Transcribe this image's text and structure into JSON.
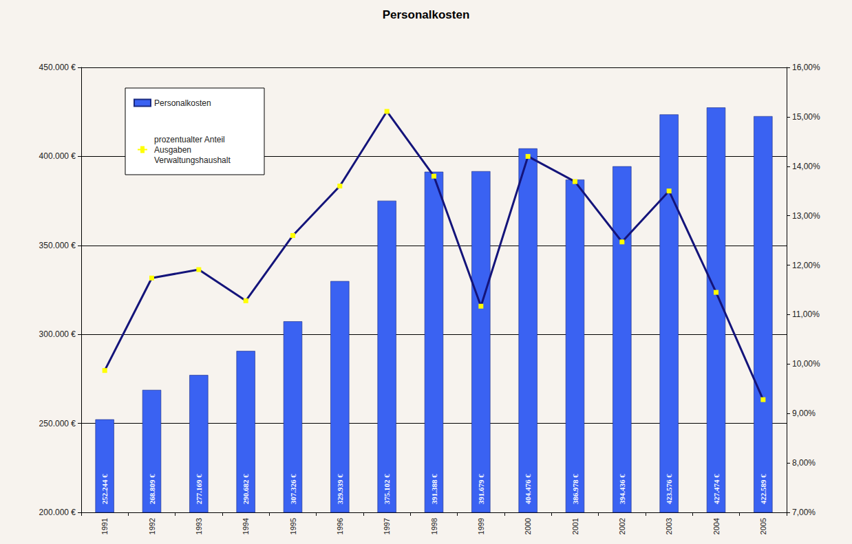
{
  "chart_data": {
    "type": "bar",
    "title": "Personalkosten",
    "categories": [
      "1991",
      "1992",
      "1993",
      "1994",
      "1995",
      "1996",
      "1997",
      "1998",
      "1999",
      "2000",
      "2001",
      "2002",
      "2003",
      "2004",
      "2005"
    ],
    "series": [
      {
        "name": "Personalkosten",
        "type": "bar",
        "color": "#3a62f2",
        "values": [
          252244,
          268809,
          277169,
          290682,
          307326,
          329939,
          375102,
          391388,
          391679,
          404476,
          386978,
          394436,
          423576,
          427474,
          422589
        ],
        "value_labels": [
          "252.244 €",
          "268.809 €",
          "277.169 €",
          "290.682 €",
          "307.326 €",
          "329.939 €",
          "375.102 €",
          "391.388 €",
          "391.679 €",
          "404.476 €",
          "386.978 €",
          "394.436 €",
          "423.576 €",
          "427.474 €",
          "422.589 €"
        ],
        "data_labels": true
      },
      {
        "name": "prozentualter Anteil Ausgaben Verwaltungshaushalt",
        "type": "line",
        "axis": "y2",
        "color": "#14147a",
        "marker": "square",
        "line_style": "solid",
        "values": [
          9.87,
          11.74,
          11.91,
          11.28,
          12.6,
          13.6,
          15.11,
          13.8,
          11.17,
          14.2,
          13.69,
          12.47,
          13.5,
          11.45,
          9.28
        ]
      }
    ],
    "ylim": [
      200000,
      450000
    ],
    "yticks": [
      {
        "value": 200000,
        "label": "200.000 €"
      },
      {
        "value": 250000,
        "label": "250.000 €"
      },
      {
        "value": 300000,
        "label": "300.000 €"
      },
      {
        "value": 350000,
        "label": "350.000 €"
      },
      {
        "value": 400000,
        "label": "400.000 €"
      },
      {
        "value": 450000,
        "label": "450.000 €"
      }
    ],
    "y2lim": [
      7,
      16
    ],
    "y2ticks": [
      {
        "value": 7,
        "label": "7,00%"
      },
      {
        "value": 8,
        "label": "8,00%"
      },
      {
        "value": 9,
        "label": "9,00%"
      },
      {
        "value": 10,
        "label": "10,00%"
      },
      {
        "value": 11,
        "label": "11,00%"
      },
      {
        "value": 12,
        "label": "12,00%"
      },
      {
        "value": 13,
        "label": "13,00%"
      },
      {
        "value": 14,
        "label": "14,00%"
      },
      {
        "value": 15,
        "label": "15,00%"
      },
      {
        "value": 16,
        "label": "16,00%"
      }
    ],
    "grid": true,
    "legend": "upper left"
  }
}
